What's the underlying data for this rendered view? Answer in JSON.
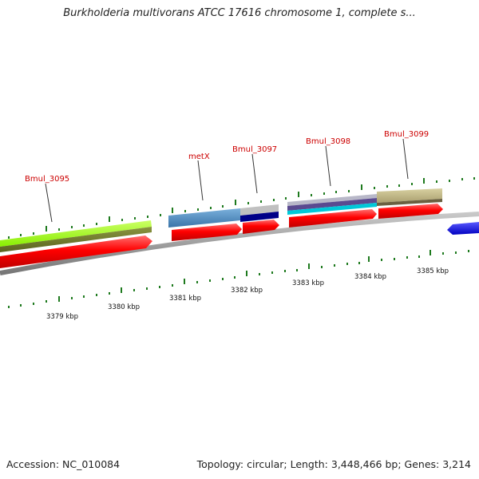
{
  "title": "Burkholderia multivorans ATCC 17616 chromosome 1, complete s...",
  "footer": {
    "accession": "Accession: NC_010084",
    "topology": "Topology: circular; Length: 3,448,466 bp; Genes: 3,214"
  },
  "gene_labels": [
    "Bmul_3095",
    "metX",
    "Bmul_3097",
    "Bmul_3098",
    "Bmul_3099"
  ],
  "kbp_labels": [
    "3379 kbp",
    "3380 kbp",
    "3381 kbp",
    "3382 kbp",
    "3383 kbp",
    "3384 kbp",
    "3385 kbp"
  ],
  "colors": {
    "cds_red": "#ff0000",
    "backbone_gray": "#8c8c8c",
    "tick_green": "#1e7a1e",
    "label_red": "#cc0000",
    "lime": "#99ff22",
    "olive": "#6e7a2a",
    "steel_blue": "#4a86b8",
    "navy": "#000088",
    "khaki": "#c8bc80",
    "purple": "#5a4a90",
    "cyan": "#00c8d8",
    "blue": "#0000ff"
  }
}
